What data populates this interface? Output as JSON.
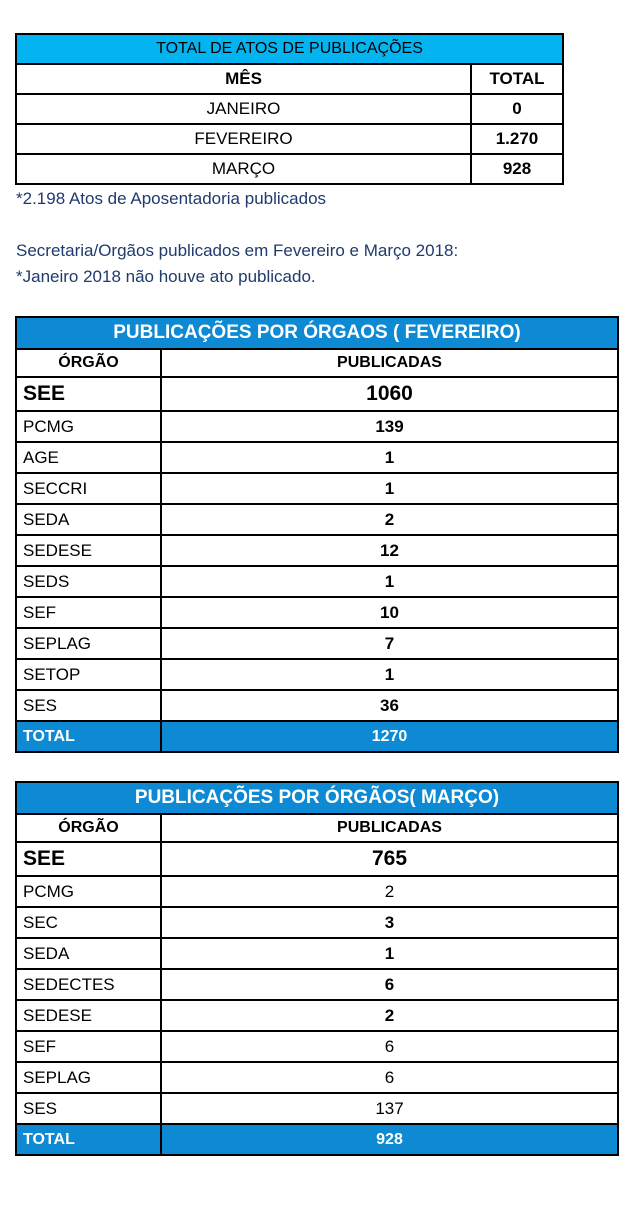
{
  "total_table": {
    "title": "TOTAL DE ATOS DE PUBLICAÇÕES",
    "headers": [
      "MÊS",
      "TOTAL"
    ],
    "rows": [
      {
        "month": "JANEIRO",
        "total": "0"
      },
      {
        "month": "FEVEREIRO",
        "total": "1.270"
      },
      {
        "month": "MARÇO",
        "total": "928"
      }
    ]
  },
  "notes": {
    "aposentadoria": "*2.198 Atos de Aposentadoria publicados",
    "secretaria": "Secretaria/Orgãos publicados em Fevereiro e Março 2018:",
    "janeiro": "*Janeiro 2018 não houve ato publicado."
  },
  "fevereiro_table": {
    "title": "PUBLICAÇÕES POR ÓRGAOS ( FEVEREIRO)",
    "headers": [
      "ÓRGÃO",
      "PUBLICADAS"
    ],
    "rows": [
      {
        "org": "SEE",
        "value": "1060"
      },
      {
        "org": "PCMG",
        "value": "139"
      },
      {
        "org": "AGE",
        "value": "1"
      },
      {
        "org": "SECCRI",
        "value": "1"
      },
      {
        "org": "SEDA",
        "value": "2"
      },
      {
        "org": "SEDESE",
        "value": "12"
      },
      {
        "org": "SEDS",
        "value": "1"
      },
      {
        "org": "SEF",
        "value": "10"
      },
      {
        "org": "SEPLAG",
        "value": "7"
      },
      {
        "org": "SETOP",
        "value": "1"
      },
      {
        "org": "SES",
        "value": "36"
      }
    ],
    "total_label": "TOTAL",
    "total_value": "1270"
  },
  "marco_table": {
    "title": "PUBLICAÇÕES POR ÓRGÃOS( MARÇO)",
    "headers": [
      "ÓRGÃO",
      "PUBLICADAS"
    ],
    "rows": [
      {
        "org": "SEE",
        "value": "765"
      },
      {
        "org": "PCMG",
        "value": "2"
      },
      {
        "org": "SEC",
        "value": "3"
      },
      {
        "org": "SEDA",
        "value": "1"
      },
      {
        "org": "SEDECTES",
        "value": "6"
      },
      {
        "org": "SEDESE",
        "value": "2"
      },
      {
        "org": "SEF",
        "value": "6"
      },
      {
        "org": "SEPLAG",
        "value": "6"
      },
      {
        "org": "SES",
        "value": "137"
      }
    ],
    "total_label": "TOTAL",
    "total_value": "928"
  }
}
